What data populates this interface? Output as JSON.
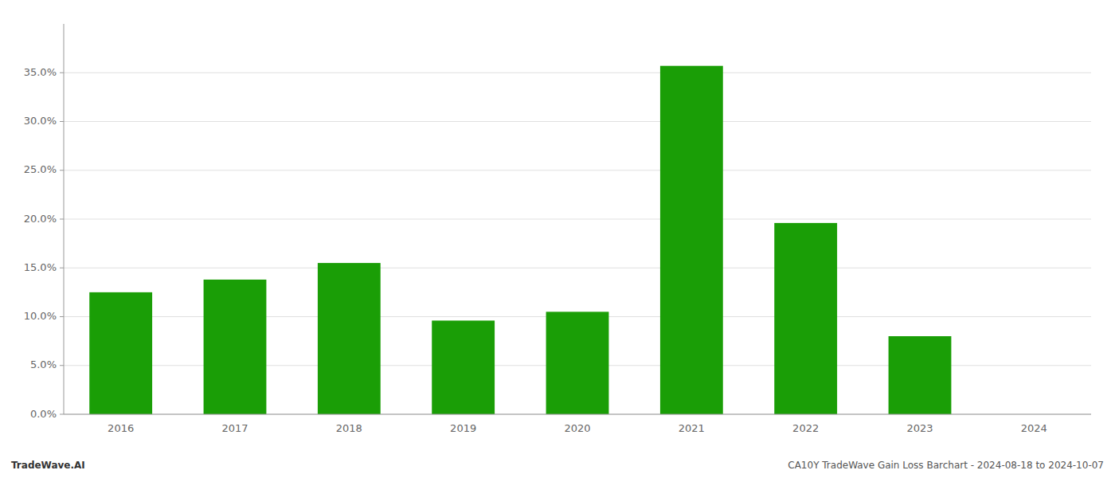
{
  "chart_data": {
    "type": "bar",
    "categories": [
      "2016",
      "2017",
      "2018",
      "2019",
      "2020",
      "2021",
      "2022",
      "2023",
      "2024"
    ],
    "values": [
      0.125,
      0.138,
      0.155,
      0.096,
      0.105,
      0.357,
      0.196,
      0.08,
      0.0
    ],
    "color": "#1a9e06",
    "ylim": [
      0,
      0.4
    ],
    "yticks": [
      {
        "value": 0.0,
        "label": "0.0%"
      },
      {
        "value": 0.05,
        "label": "5.0%"
      },
      {
        "value": 0.1,
        "label": "10.0%"
      },
      {
        "value": 0.15,
        "label": "15.0%"
      },
      {
        "value": 0.2,
        "label": "20.0%"
      },
      {
        "value": 0.25,
        "label": "25.0%"
      },
      {
        "value": 0.3,
        "label": "30.0%"
      },
      {
        "value": 0.35,
        "label": "35.0%"
      }
    ],
    "grid": true,
    "annotations": [
      "TradeWave.AI",
      "CA10Y TradeWave Gain Loss Barchart - 2024-08-18 to 2024-10-07"
    ]
  }
}
